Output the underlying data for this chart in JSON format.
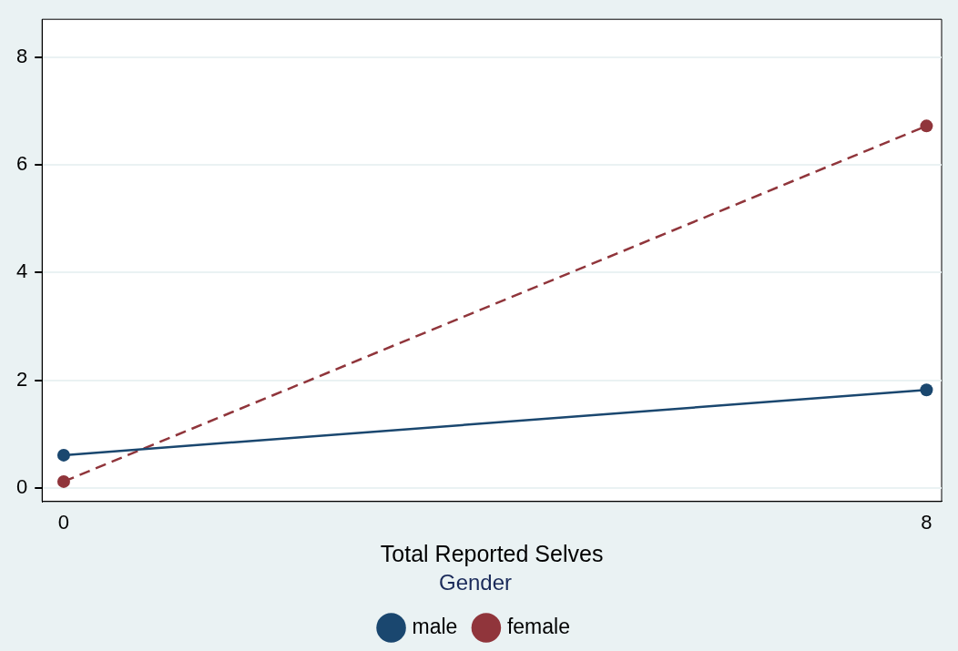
{
  "chart_data": {
    "type": "line",
    "xlabel": "Total Reported Selves",
    "legend_title": "Gender",
    "x": [
      0,
      8
    ],
    "series": [
      {
        "name": "male",
        "color": "#1a476f",
        "values": [
          0.61,
          1.82
        ],
        "line_style": "solid"
      },
      {
        "name": "female",
        "color": "#90353b",
        "values": [
          0.12,
          6.72
        ],
        "line_style": "dashed"
      }
    ],
    "xlim": [
      -0.2,
      8.14
    ],
    "xticks": [
      0,
      8
    ],
    "ylim": [
      -0.25,
      8.7
    ],
    "yticks": [
      0,
      2,
      4,
      6,
      8
    ],
    "grid": "y",
    "legend": "bottom",
    "marker": "circle"
  }
}
